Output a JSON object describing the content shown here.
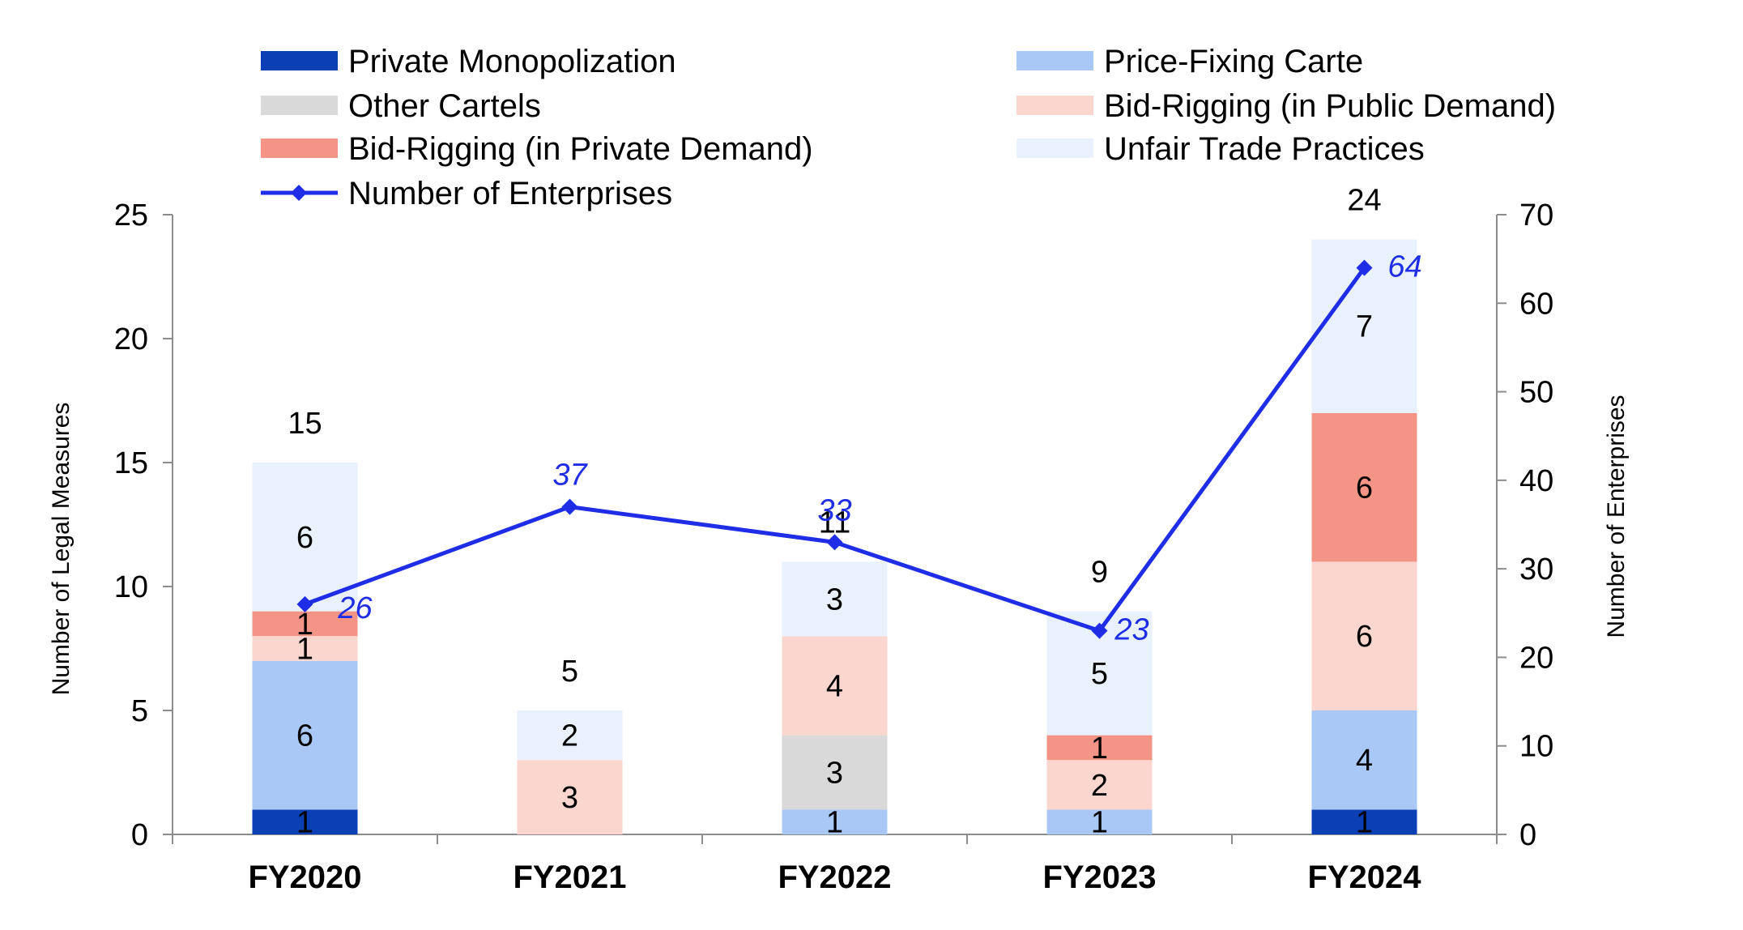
{
  "chart_data": {
    "type": "bar",
    "stacked": true,
    "categories": [
      "FY2020",
      "FY2021",
      "FY2022",
      "FY2023",
      "FY2024"
    ],
    "series": [
      {
        "name": "Private Monopolization",
        "color": "#0a3fb5",
        "values": [
          1,
          0,
          0,
          0,
          1
        ],
        "labels": [
          "1",
          "",
          "",
          "",
          "1"
        ]
      },
      {
        "name": "Price-Fixing Carte",
        "color": "#a9c8f5",
        "values": [
          6,
          0,
          1,
          1,
          4
        ],
        "labels": [
          "6",
          "",
          "1",
          "1",
          "4"
        ]
      },
      {
        "name": "Other Cartels",
        "color": "#d9d9d9",
        "values": [
          0,
          0,
          3,
          0,
          0
        ],
        "labels": [
          "",
          "",
          "3",
          "",
          ""
        ]
      },
      {
        "name": "Bid-Rigging (in Public Demand)",
        "color": "#fbd6cf",
        "values": [
          1,
          3,
          4,
          2,
          6
        ],
        "labels": [
          "1",
          "3",
          "4",
          "2",
          "6"
        ]
      },
      {
        "name": "Bid-Rigging (in Private Demand)",
        "color": "#f39486",
        "values": [
          1,
          0,
          0,
          1,
          6
        ],
        "labels": [
          "1",
          "",
          "",
          "1",
          "6"
        ]
      },
      {
        "name": "Unfair Trade Practices",
        "color": "#e8f1fc",
        "values": [
          6,
          2,
          3,
          5,
          7
        ],
        "labels": [
          "6",
          "2",
          "3",
          "5",
          "7"
        ]
      }
    ],
    "totals": [
      15,
      5,
      11,
      9,
      24
    ],
    "total_labels": [
      "15",
      "5",
      "11",
      "9",
      "24"
    ],
    "line_series": {
      "name": "Number of Enterprises",
      "color": "#1f2ee6",
      "axis": "secondary",
      "values": [
        26,
        37,
        33,
        23,
        64
      ],
      "labels": [
        "26",
        "37",
        "33",
        "23",
        "64"
      ]
    },
    "ylabel": "Number of Legal Measures",
    "y2label": "Number of Enterprises",
    "ylim": [
      0,
      25
    ],
    "y2lim": [
      0,
      70
    ],
    "yticks": [
      "0",
      "5",
      "10",
      "15",
      "20",
      "25"
    ],
    "y2ticks": [
      "0",
      "10",
      "20",
      "30",
      "40",
      "50",
      "60",
      "70"
    ],
    "legend_position": "top",
    "legend": [
      "Private Monopolization",
      "Price-Fixing Carte",
      "Other Cartels",
      "Bid-Rigging (in Public Demand)",
      "Bid-Rigging (in Private Demand)",
      "Unfair Trade Practices",
      "Number of Enterprises"
    ]
  }
}
